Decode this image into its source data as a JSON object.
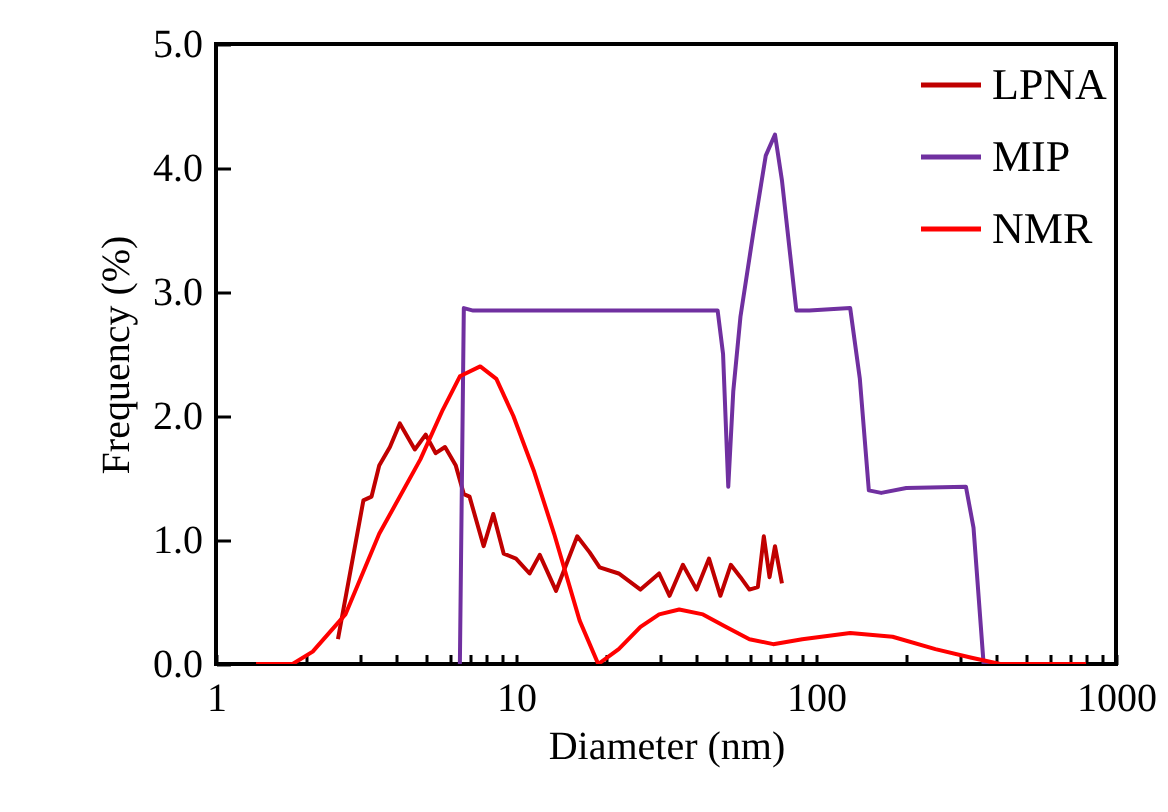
{
  "chart_data": {
    "type": "line",
    "xlabel": "Diameter (nm)",
    "ylabel": "Frequency (%)",
    "log": "x",
    "grid": false,
    "legend": "top right",
    "xlim": [
      1,
      1000
    ],
    "xticks": [
      1,
      {
        "value": 2,
        "label": null
      },
      {
        "value": 3,
        "label": null
      },
      {
        "value": 4,
        "label": null
      },
      {
        "value": 5,
        "label": null
      },
      {
        "value": 6,
        "label": null
      },
      {
        "value": 7,
        "label": null
      },
      {
        "value": 8,
        "label": null
      },
      {
        "value": 9,
        "label": null
      },
      10,
      {
        "value": 20,
        "label": null
      },
      {
        "value": 30,
        "label": null
      },
      {
        "value": 40,
        "label": null
      },
      {
        "value": 50,
        "label": null
      },
      {
        "value": 60,
        "label": null
      },
      {
        "value": 70,
        "label": null
      },
      {
        "value": 80,
        "label": null
      },
      {
        "value": 90,
        "label": null
      },
      100,
      {
        "value": 200,
        "label": null
      },
      {
        "value": 300,
        "label": null
      },
      {
        "value": 400,
        "label": null
      },
      {
        "value": 500,
        "label": null
      },
      {
        "value": 600,
        "label": null
      },
      {
        "value": 700,
        "label": null
      },
      {
        "value": 800,
        "label": null
      },
      {
        "value": 900,
        "label": null
      },
      1000
    ],
    "ylim": [
      0,
      5
    ],
    "yticks": [
      {
        "value": 0,
        "label": "0.0"
      },
      {
        "value": 1,
        "label": "1.0"
      },
      {
        "value": 2,
        "label": "2.0"
      },
      {
        "value": 3,
        "label": "3.0"
      },
      {
        "value": 4,
        "label": "4.0"
      },
      {
        "value": 5,
        "label": "5.0"
      }
    ],
    "series": [
      {
        "name": "LPNA",
        "color": "#c00000",
        "x": [
          2.55,
          3.1,
          3.3,
          3.5,
          3.8,
          4.1,
          4.6,
          5.0,
          5.4,
          5.8,
          6.3,
          6.7,
          7.0,
          7.8,
          8.4,
          9.1,
          10,
          11.1,
          12,
          13.6,
          16,
          17.6,
          19,
          22,
          26,
          30,
          32.5,
          36,
          40,
          44,
          48,
          52,
          56,
          60,
          64,
          67,
          70,
          73,
          77
        ],
        "values": [
          0.2,
          1.32,
          1.35,
          1.6,
          1.75,
          1.94,
          1.73,
          1.85,
          1.7,
          1.75,
          1.6,
          1.37,
          1.35,
          0.95,
          1.21,
          0.89,
          0.85,
          0.73,
          0.88,
          0.59,
          1.03,
          0.9,
          0.78,
          0.73,
          0.6,
          0.73,
          0.55,
          0.8,
          0.6,
          0.85,
          0.55,
          0.8,
          0.7,
          0.6,
          0.62,
          1.03,
          0.7,
          0.95,
          0.65
        ]
      },
      {
        "name": "MIP",
        "color": "#7030a0",
        "x": [
          6.5,
          6.7,
          7.2,
          47,
          49,
          51,
          53,
          56,
          62,
          68,
          73,
          77,
          86,
          95,
          130,
          140,
          150,
          165,
          200,
          316,
          335,
          362,
          380
        ],
        "values": [
          0,
          2.87,
          2.85,
          2.85,
          2.5,
          1.43,
          2.2,
          2.8,
          3.5,
          4.1,
          4.27,
          3.9,
          2.85,
          2.85,
          2.87,
          2.3,
          1.4,
          1.38,
          1.42,
          1.43,
          1.1,
          0,
          0
        ]
      },
      {
        "name": "NMR",
        "color": "#ff0000",
        "x": [
          1.36,
          1.8,
          2.1,
          2.7,
          3.5,
          4.8,
          5.7,
          6.5,
          7.6,
          8.6,
          9.8,
          11.5,
          13.4,
          16.3,
          18.8,
          22,
          26,
          30,
          35,
          42,
          50,
          60,
          72,
          90,
          130,
          180,
          250,
          330,
          411,
          795
        ],
        "values": [
          0,
          0,
          0.1,
          0.4,
          1.05,
          1.65,
          2.05,
          2.32,
          2.4,
          2.3,
          2.0,
          1.55,
          1.05,
          0.35,
          0,
          0.12,
          0.3,
          0.4,
          0.44,
          0.4,
          0.3,
          0.2,
          0.16,
          0.2,
          0.25,
          0.22,
          0.12,
          0.05,
          0,
          0
        ]
      }
    ]
  }
}
